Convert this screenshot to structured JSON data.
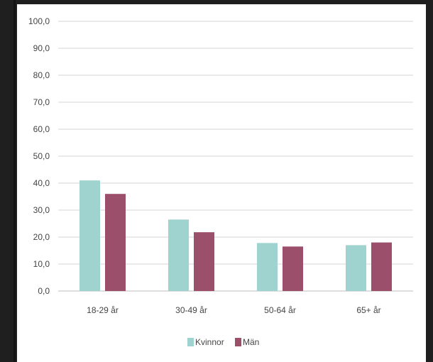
{
  "chart_data": {
    "type": "bar",
    "categories": [
      "18-29 år",
      "30-49 år",
      "50-64 år",
      "65+ år"
    ],
    "series": [
      {
        "name": "Kvinnor",
        "color": "#9fd3cf",
        "values": [
          41.0,
          26.5,
          17.8,
          17.0
        ]
      },
      {
        "name": "Män",
        "color": "#9b4f6b",
        "values": [
          36.0,
          21.8,
          16.5,
          18.0
        ]
      }
    ],
    "ylim": [
      0,
      100
    ],
    "yticks": [
      "0,0",
      "10,0",
      "20,0",
      "30,0",
      "40,0",
      "50,0",
      "60,0",
      "70,0",
      "80,0",
      "90,0",
      "100,0"
    ],
    "grid": true,
    "legend": "bottom-center",
    "title": "",
    "xlabel": "",
    "ylabel": ""
  }
}
